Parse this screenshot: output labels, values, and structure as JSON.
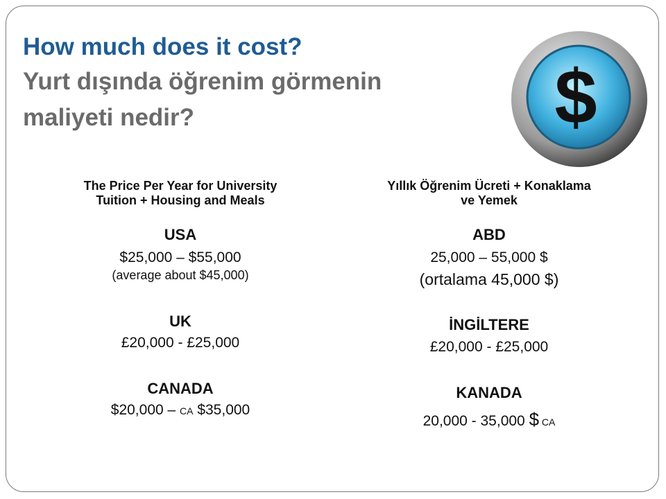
{
  "title": {
    "line1": "How much does it cost?",
    "line2": "Yurt dışında öğrenim görmenin",
    "line3": "maliyeti nedir?"
  },
  "columns": [
    {
      "heading": [
        "The Price Per Year for University",
        "Tuition + Housing and Meals"
      ],
      "entries": [
        {
          "country": "USA",
          "range": [
            "$25,000 – $55,000"
          ],
          "note": "(average about $45,000)"
        },
        {
          "country": "UK",
          "range": [
            "£20,000 - £25,000"
          ]
        },
        {
          "country": "CANADA",
          "range": [
            "$20,000 – ",
            "CA",
            " $35,000"
          ]
        }
      ]
    },
    {
      "heading": [
        "Yıllık Öğrenim Ücreti + Konaklama",
        "ve Yemek"
      ],
      "entries": [
        {
          "country": "ABD",
          "range": [
            "25,000 – 55,000 $"
          ],
          "note": "(ortalama 45,000 $)"
        },
        {
          "country": "İNGİLTERE",
          "range": [
            "£20,000 - £25,000"
          ]
        },
        {
          "country": "KANADA",
          "range": [
            "20,000 - 35,000 ",
            "$",
            " CA"
          ]
        }
      ]
    }
  ]
}
